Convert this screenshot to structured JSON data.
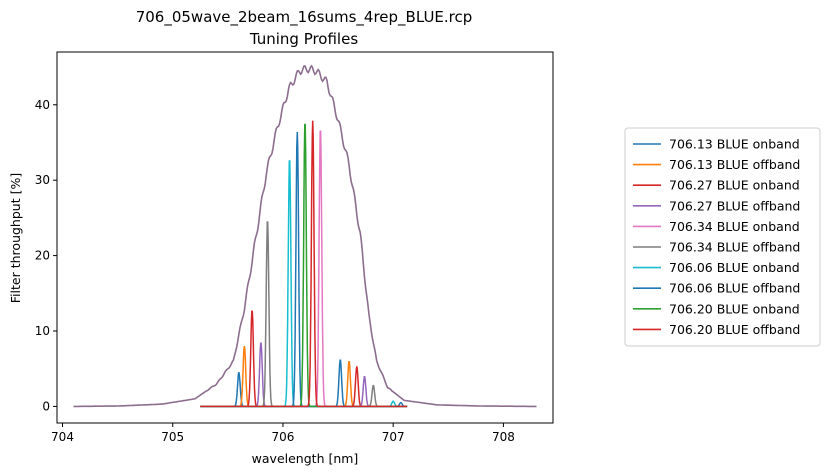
{
  "chart_data": {
    "type": "line",
    "title": "706_05wave_2beam_16sums_4rep_BLUE.rcp",
    "subtitle": "Tuning Profiles",
    "xlabel": "wavelength [nm]",
    "ylabel": "Filter throughput [%]",
    "xlim": [
      703.95,
      708.45
    ],
    "ylim": [
      -2.2,
      47.0
    ],
    "xticks": [
      704,
      705,
      706,
      707,
      708
    ],
    "yticks": [
      0,
      10,
      20,
      30,
      40
    ],
    "grid": false,
    "legend_position": "right (outside)",
    "envelope": {
      "x": [
        704.1,
        704.5,
        704.9,
        705.2,
        705.4,
        705.55,
        705.65,
        705.75,
        705.85,
        705.95,
        706.05,
        706.15,
        706.22,
        706.3,
        706.4,
        706.5,
        706.6,
        706.7,
        706.78,
        706.85,
        706.95,
        707.1,
        707.4,
        707.8,
        708.3
      ],
      "y": [
        0.0,
        0.05,
        0.3,
        1.0,
        3.0,
        6.0,
        13.0,
        22.0,
        31.0,
        37.0,
        42.0,
        44.5,
        44.8,
        44.5,
        43.0,
        38.0,
        32.0,
        23.0,
        12.0,
        6.0,
        2.5,
        0.8,
        0.2,
        0.05,
        0.0
      ]
    },
    "series": [
      {
        "name": "706.13 BLUE onband",
        "color": "#1f77b4",
        "peaks": [
          [
            705.6,
            4.5
          ],
          [
            706.52,
            6.2
          ]
        ]
      },
      {
        "name": "706.13 BLUE offband",
        "color": "#ff7f0e",
        "peaks": [
          [
            705.65,
            8.0
          ],
          [
            706.6,
            6.0
          ]
        ]
      },
      {
        "name": "706.27 BLUE onband",
        "color": "#d62728",
        "peaks": [
          [
            705.72,
            12.8
          ],
          [
            706.67,
            5.3
          ]
        ]
      },
      {
        "name": "706.27 BLUE offband",
        "color": "#9467bd",
        "peaks": [
          [
            705.8,
            8.5
          ],
          [
            706.74,
            4.0
          ]
        ]
      },
      {
        "name": "706.34 BLUE onband",
        "color": "#e377c2",
        "peaks": [
          [
            706.34,
            37.0
          ]
        ]
      },
      {
        "name": "706.34 BLUE offband",
        "color": "#7f7f7f",
        "peaks": [
          [
            705.86,
            24.8
          ],
          [
            706.82,
            2.8
          ]
        ]
      },
      {
        "name": "706.06 BLUE onband",
        "color": "#17becf",
        "peaks": [
          [
            706.06,
            33.0
          ],
          [
            707.0,
            0.7
          ]
        ]
      },
      {
        "name": "706.06 BLUE offband",
        "color": "#1f77b4",
        "peaks": [
          [
            706.13,
            36.4
          ],
          [
            707.07,
            0.5
          ]
        ]
      },
      {
        "name": "706.20 BLUE onband",
        "color": "#2ca02c",
        "peaks": [
          [
            706.2,
            37.9
          ]
        ]
      },
      {
        "name": "706.20 BLUE offband",
        "color": "#d62728",
        "peaks": [
          [
            706.27,
            37.9
          ]
        ]
      }
    ]
  }
}
